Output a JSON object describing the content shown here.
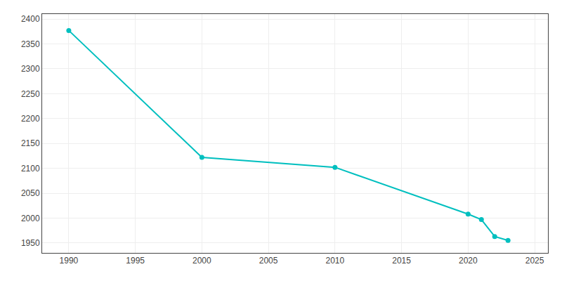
{
  "chart_data": {
    "type": "line",
    "x": [
      1990,
      2000,
      2010,
      2020,
      2021,
      2022,
      2023
    ],
    "values": [
      2377,
      2122,
      2102,
      2008,
      1997,
      1963,
      1955
    ],
    "color": "#00BFBF",
    "marker": "circle",
    "xlim": [
      1988,
      2026
    ],
    "ylim": [
      1930,
      2410
    ],
    "xticks": [
      1990,
      1995,
      2000,
      2005,
      2010,
      2015,
      2020,
      2025
    ],
    "yticks": [
      1950,
      2000,
      2050,
      2100,
      2150,
      2200,
      2250,
      2300,
      2350,
      2400
    ],
    "grid": true
  }
}
